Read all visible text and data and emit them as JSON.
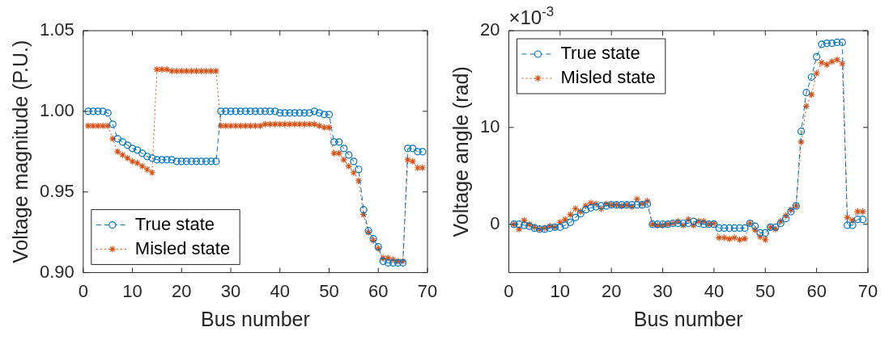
{
  "chart_data": [
    {
      "type": "line",
      "xlabel": "Bus number",
      "ylabel": "Voltage magnitude (P.U.)",
      "x": [
        1,
        2,
        3,
        4,
        5,
        6,
        7,
        8,
        9,
        10,
        11,
        12,
        13,
        14,
        15,
        16,
        17,
        18,
        19,
        20,
        21,
        22,
        23,
        24,
        25,
        26,
        27,
        28,
        29,
        30,
        31,
        32,
        33,
        34,
        35,
        36,
        37,
        38,
        39,
        40,
        41,
        42,
        43,
        44,
        45,
        46,
        47,
        48,
        49,
        50,
        51,
        52,
        53,
        54,
        55,
        56,
        57,
        58,
        59,
        60,
        61,
        62,
        63,
        64,
        65,
        66,
        67,
        68,
        69
      ],
      "xlim": [
        0,
        70
      ],
      "xticks": [
        0,
        10,
        20,
        30,
        40,
        50,
        60,
        70
      ],
      "ylim": [
        0.9,
        1.05
      ],
      "yticks": [
        {
          "value": 0.9,
          "label": "0.90"
        },
        {
          "value": 0.95,
          "label": "0.95"
        },
        {
          "value": 1.0,
          "label": "1.00"
        },
        {
          "value": 1.05,
          "label": "1.05"
        }
      ],
      "grid": false,
      "legend": "bottom left",
      "series": [
        {
          "name": "True state",
          "color": "#0072bd",
          "marker": "circle",
          "line_style": "dashed",
          "values": [
            1.0,
            1.0,
            1.0,
            1.0,
            0.999,
            0.992,
            0.983,
            0.981,
            0.979,
            0.977,
            0.976,
            0.974,
            0.972,
            0.971,
            0.97,
            0.97,
            0.97,
            0.97,
            0.969,
            0.969,
            0.969,
            0.969,
            0.969,
            0.969,
            0.969,
            0.969,
            0.969,
            1.0,
            1.0,
            1.0,
            1.0,
            1.0,
            1.0,
            1.0,
            1.0,
            1.0,
            1.0,
            1.0,
            1.0,
            0.999,
            0.999,
            0.999,
            0.999,
            0.999,
            0.999,
            0.999,
            1.0,
            0.999,
            0.998,
            0.998,
            0.981,
            0.981,
            0.977,
            0.973,
            0.969,
            0.964,
            0.939,
            0.926,
            0.921,
            0.916,
            0.907,
            0.906,
            0.906,
            0.906,
            0.906,
            0.977,
            0.977,
            0.975,
            0.975
          ]
        },
        {
          "name": "Misled state",
          "color": "#d95319",
          "marker": "cross",
          "line_style": "dotted",
          "values": [
            0.991,
            0.991,
            0.991,
            0.991,
            0.991,
            0.983,
            0.975,
            0.973,
            0.971,
            0.969,
            0.968,
            0.966,
            0.964,
            0.962,
            1.026,
            1.026,
            1.026,
            1.025,
            1.025,
            1.025,
            1.025,
            1.025,
            1.025,
            1.025,
            1.025,
            1.025,
            1.025,
            0.991,
            0.991,
            0.991,
            0.991,
            0.991,
            0.991,
            0.991,
            0.991,
            0.991,
            0.992,
            0.992,
            0.992,
            0.992,
            0.992,
            0.992,
            0.992,
            0.992,
            0.992,
            0.992,
            0.992,
            0.991,
            0.99,
            0.99,
            0.974,
            0.974,
            0.97,
            0.966,
            0.962,
            0.957,
            0.936,
            0.925,
            0.92,
            0.915,
            0.909,
            0.909,
            0.908,
            0.907,
            0.907,
            0.97,
            0.969,
            0.965,
            0.965
          ]
        }
      ]
    },
    {
      "type": "line",
      "xlabel": "Bus number",
      "ylabel": "Voltage angle (rad)",
      "annotations": [
        "×10$^{-3}$"
      ],
      "x": [
        1,
        2,
        3,
        4,
        5,
        6,
        7,
        8,
        9,
        10,
        11,
        12,
        13,
        14,
        15,
        16,
        17,
        18,
        19,
        20,
        21,
        22,
        23,
        24,
        25,
        26,
        27,
        28,
        29,
        30,
        31,
        32,
        33,
        34,
        35,
        36,
        37,
        38,
        39,
        40,
        41,
        42,
        43,
        44,
        45,
        46,
        47,
        48,
        49,
        50,
        51,
        52,
        53,
        54,
        55,
        56,
        57,
        58,
        59,
        60,
        61,
        62,
        63,
        64,
        65,
        66,
        67,
        68,
        69
      ],
      "xlim": [
        0,
        70
      ],
      "xticks": [
        0,
        10,
        20,
        30,
        40,
        50,
        60,
        70
      ],
      "ylim": [
        -5,
        20
      ],
      "yticks": [
        0,
        10,
        20
      ],
      "grid": false,
      "legend": "top left",
      "series": [
        {
          "name": "True state",
          "color": "#0072bd",
          "marker": "circle",
          "line_style": "dashed",
          "values": [
            0,
            0,
            -0.1,
            -0.2,
            -0.4,
            -0.5,
            -0.5,
            -0.4,
            -0.3,
            -0.3,
            -0.1,
            0.2,
            0.7,
            1.1,
            1.5,
            1.7,
            1.8,
            1.9,
            1.9,
            2.0,
            2.0,
            2.0,
            2.0,
            2.0,
            2.0,
            2.0,
            2.1,
            0,
            0,
            0,
            0,
            0.1,
            0.1,
            0.1,
            0.1,
            0.3,
            0.1,
            0,
            0,
            0,
            -0.4,
            -0.4,
            -0.4,
            -0.4,
            -0.4,
            -0.4,
            0.1,
            -0.2,
            -0.9,
            -0.9,
            -0.3,
            -0.3,
            0.1,
            0.6,
            1.3,
            1.9,
            9.6,
            13.6,
            15.2,
            17.3,
            18.6,
            18.7,
            18.7,
            18.8,
            18.8,
            -0.1,
            -0.1,
            0.5,
            0.5
          ]
        },
        {
          "name": "Misled state",
          "color": "#d95319",
          "marker": "cross",
          "line_style": "dotted",
          "values": [
            0,
            -0.5,
            0.4,
            0,
            -0.3,
            -0.5,
            -0.4,
            -0.2,
            -0.3,
            0.2,
            0.5,
            1.0,
            1.6,
            1.3,
            1.9,
            2.2,
            2.1,
            1.6,
            2.1,
            2.0,
            2.0,
            1.9,
            2.0,
            1.8,
            2.6,
            2.1,
            2.4,
            0,
            -0.1,
            -0.1,
            0,
            0.1,
            0.3,
            -0.1,
            0.5,
            -0.1,
            0.3,
            0.3,
            0,
            0.1,
            -1.4,
            -1.4,
            -1.5,
            -1.4,
            -1.6,
            -1.5,
            0.1,
            -0.6,
            -1.3,
            -1.6,
            -0.3,
            -0.5,
            0.3,
            0.9,
            1.5,
            1.9,
            8.5,
            12.2,
            13.4,
            15.6,
            16.7,
            16.5,
            16.8,
            17.0,
            16.6,
            0.7,
            0.4,
            1.3,
            1.3
          ]
        }
      ]
    }
  ]
}
